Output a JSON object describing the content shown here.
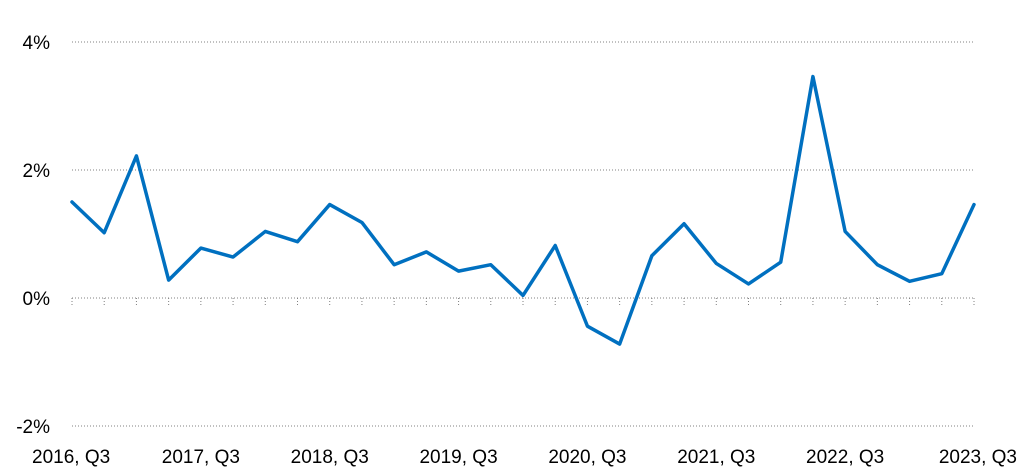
{
  "chart_data": {
    "type": "line",
    "title": "",
    "xlabel": "",
    "ylabel": "",
    "ylim": [
      -2,
      4
    ],
    "y_ticks": [
      {
        "value": 4,
        "label": "4%"
      },
      {
        "value": 2,
        "label": "2%"
      },
      {
        "value": 0,
        "label": "0%"
      },
      {
        "value": -2,
        "label": "-2%"
      }
    ],
    "x_tick_labels": [
      {
        "index": 0,
        "label": "2016, Q3"
      },
      {
        "index": 4,
        "label": "2017, Q3"
      },
      {
        "index": 8,
        "label": "2018, Q3"
      },
      {
        "index": 12,
        "label": "2019, Q3"
      },
      {
        "index": 16,
        "label": "2020, Q3"
      },
      {
        "index": 20,
        "label": "2021, Q3"
      },
      {
        "index": 24,
        "label": "2022, Q3"
      },
      {
        "index": 28,
        "label": "2023, Q3"
      }
    ],
    "grid": true,
    "legend": "none",
    "series": [
      {
        "color": "#0070C0",
        "values": [
          1.5,
          1.02,
          2.22,
          0.28,
          0.78,
          0.64,
          1.04,
          0.88,
          1.46,
          1.18,
          0.52,
          0.72,
          0.42,
          0.52,
          0.04,
          0.82,
          -0.44,
          -0.72,
          0.66,
          1.16,
          0.54,
          0.22,
          0.56,
          3.46,
          1.04,
          0.52,
          0.26,
          0.38,
          1.46
        ]
      }
    ]
  }
}
